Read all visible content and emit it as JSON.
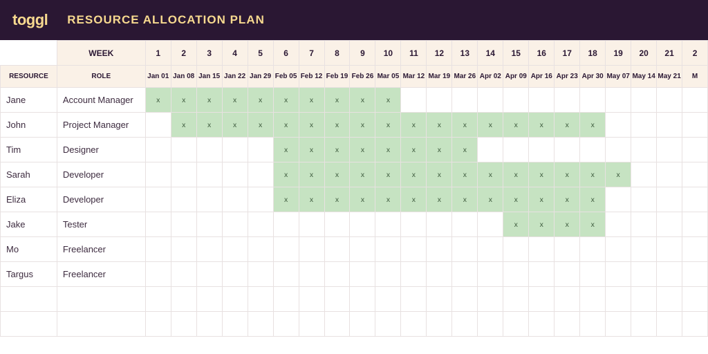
{
  "header": {
    "logo_text": "toggl",
    "title": "RESOURCE ALLOCATION PLAN"
  },
  "colors": {
    "header_bg": "#2a1733",
    "header_text": "#f7d98f",
    "table_header_bg": "#faf1e7",
    "allocated_bg": "#c6e3c2",
    "border": "#e8e1e1"
  },
  "grid": {
    "labels": {
      "week": "WEEK",
      "resource": "RESOURCE",
      "role": "ROLE"
    },
    "week_numbers": [
      "1",
      "2",
      "3",
      "4",
      "5",
      "6",
      "7",
      "8",
      "9",
      "10",
      "11",
      "12",
      "13",
      "14",
      "15",
      "16",
      "17",
      "18",
      "19",
      "20",
      "21",
      "2"
    ],
    "dates": [
      "Jan 01",
      "Jan 08",
      "Jan 15",
      "Jan 22",
      "Jan 29",
      "Feb 05",
      "Feb 12",
      "Feb 19",
      "Feb 26",
      "Mar 05",
      "Mar 12",
      "Mar 19",
      "Mar 26",
      "Apr 02",
      "Apr 09",
      "Apr 16",
      "Apr 23",
      "Apr 30",
      "May 07",
      "May 14",
      "May 21",
      "M"
    ],
    "allocation_marker": "x",
    "resources": [
      {
        "name": "Jane",
        "role": "Account Manager",
        "allocated_weeks": [
          1,
          2,
          3,
          4,
          5,
          6,
          7,
          8,
          9,
          10
        ]
      },
      {
        "name": "John",
        "role": "Project Manager",
        "allocated_weeks": [
          2,
          3,
          4,
          5,
          6,
          7,
          8,
          9,
          10,
          11,
          12,
          13,
          14,
          15,
          16,
          17,
          18
        ]
      },
      {
        "name": "Tim",
        "role": "Designer",
        "allocated_weeks": [
          6,
          7,
          8,
          9,
          10,
          11,
          12,
          13
        ]
      },
      {
        "name": "Sarah",
        "role": "Developer",
        "allocated_weeks": [
          6,
          7,
          8,
          9,
          10,
          11,
          12,
          13,
          14,
          15,
          16,
          17,
          18,
          19
        ]
      },
      {
        "name": "Eliza",
        "role": "Developer",
        "allocated_weeks": [
          6,
          7,
          8,
          9,
          10,
          11,
          12,
          13,
          14,
          15,
          16,
          17,
          18
        ]
      },
      {
        "name": "Jake",
        "role": "Tester",
        "allocated_weeks": [
          15,
          16,
          17,
          18
        ]
      },
      {
        "name": "Mo",
        "role": "Freelancer",
        "allocated_weeks": []
      },
      {
        "name": "Targus",
        "role": "Freelancer",
        "allocated_weeks": []
      }
    ]
  }
}
